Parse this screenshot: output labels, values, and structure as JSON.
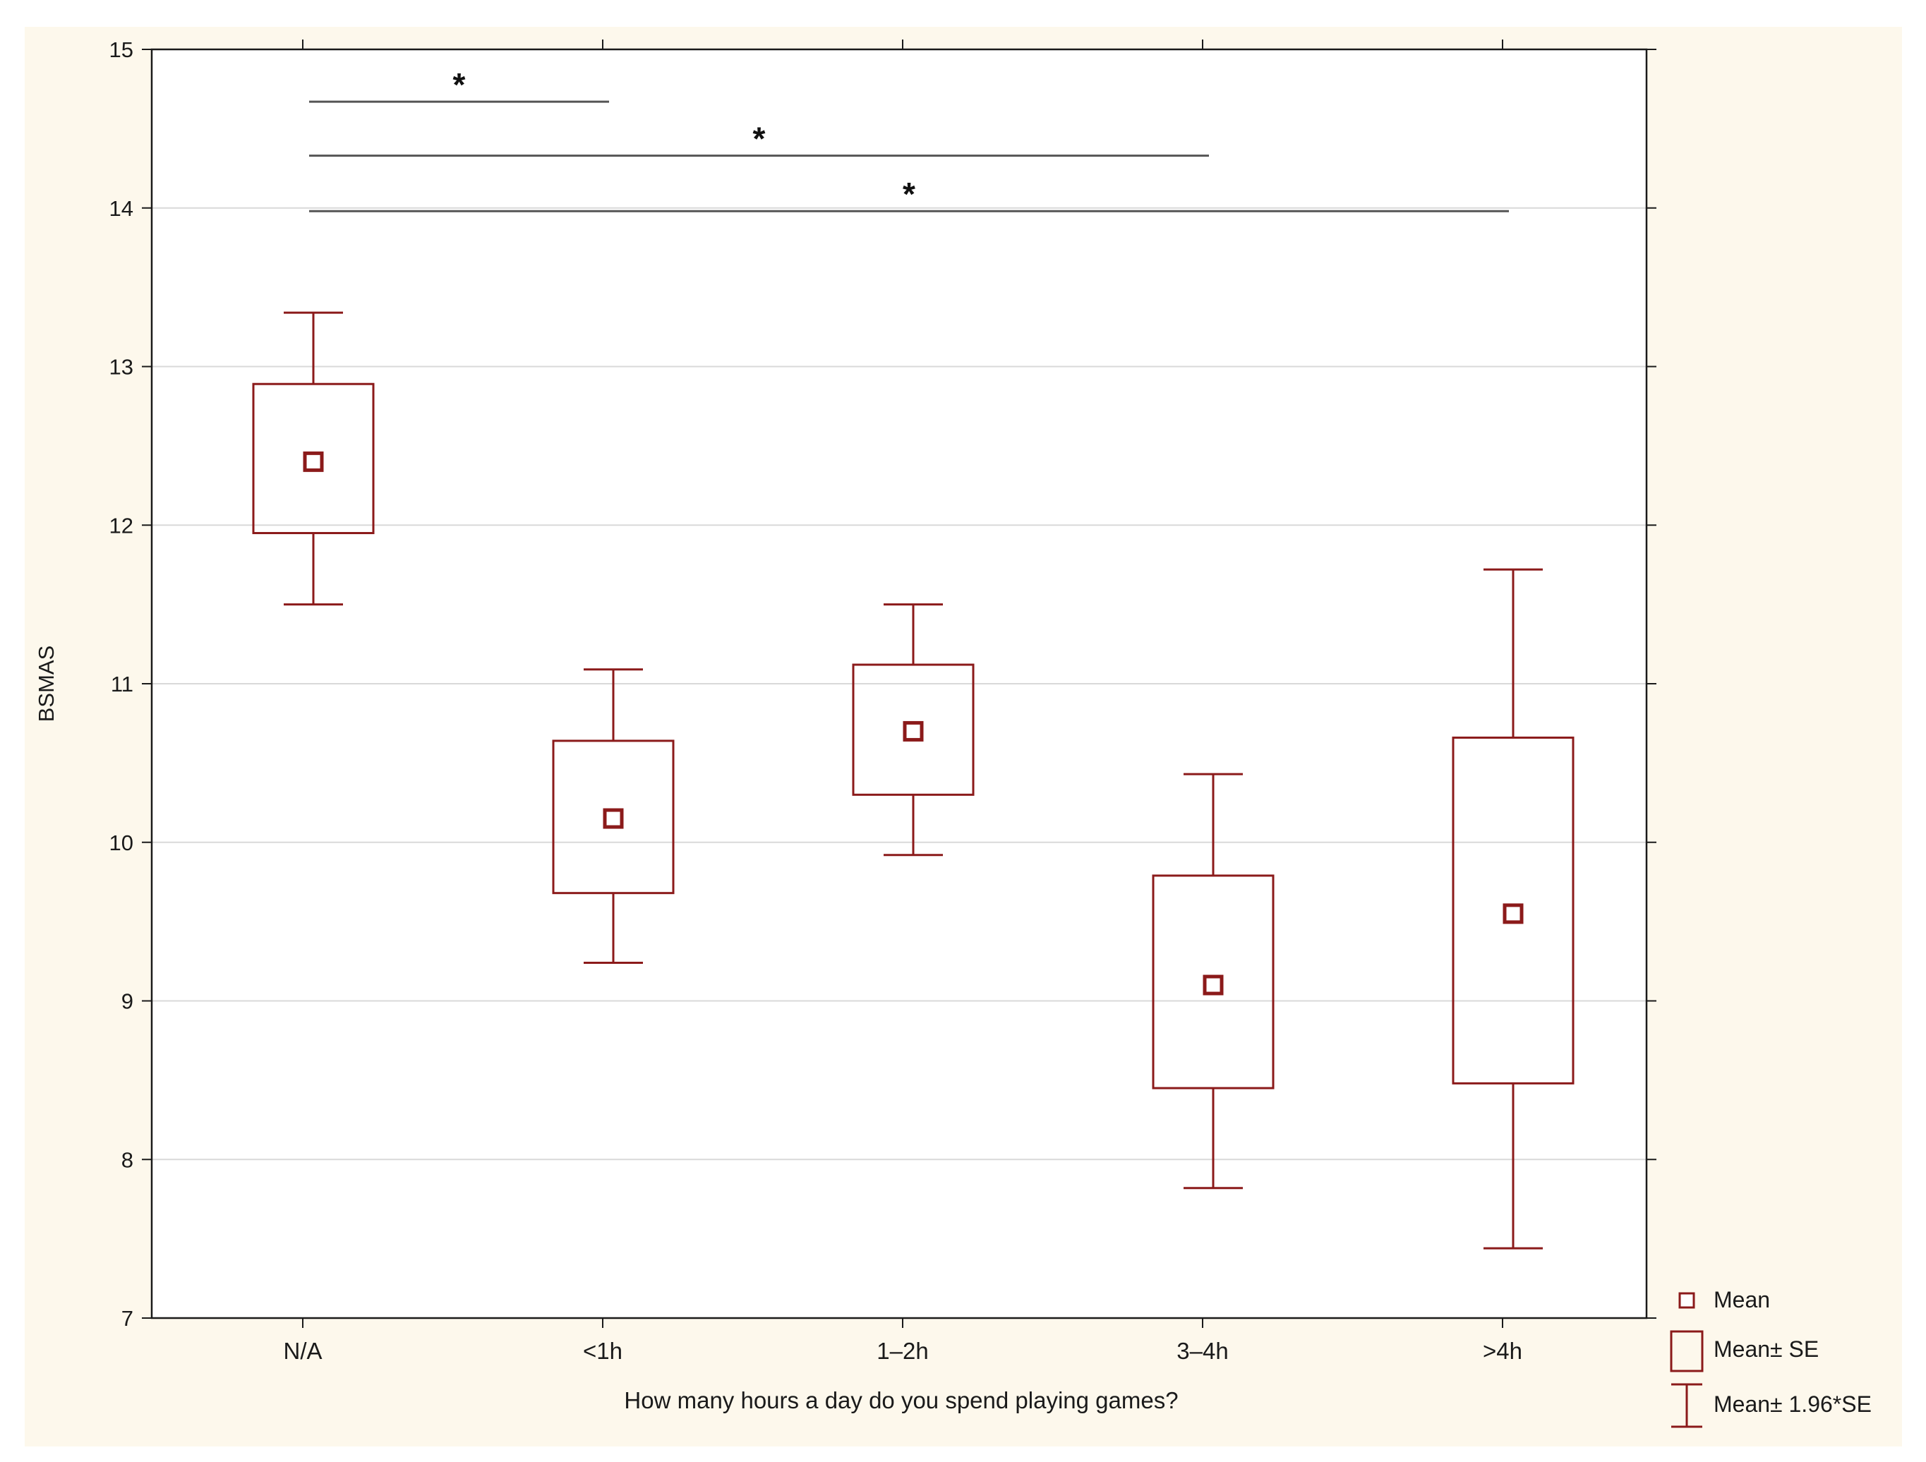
{
  "chart_data": {
    "type": "box",
    "title": "",
    "xlabel": "How many hours a day do you spend playing games?",
    "ylabel": "BSMAS",
    "ylim": [
      7,
      15
    ],
    "yticks": [
      7,
      8,
      9,
      10,
      11,
      12,
      13,
      14,
      15
    ],
    "grid": "horizontal",
    "categories": [
      "N/A",
      "<1h",
      "1–2h",
      "3–4h",
      ">4h"
    ],
    "mean": [
      12.4,
      10.15,
      10.7,
      9.1,
      9.55
    ],
    "mean_minus_se": [
      11.95,
      9.68,
      10.3,
      8.45,
      8.48
    ],
    "mean_plus_se": [
      12.89,
      10.64,
      11.12,
      9.79,
      10.66
    ],
    "mean_minus_1_96se": [
      11.5,
      9.24,
      9.92,
      7.82,
      7.44
    ],
    "mean_plus_1_96se": [
      13.34,
      11.09,
      11.5,
      10.43,
      11.72
    ],
    "significance": [
      {
        "from": "N/A",
        "to": "<1h",
        "y": 14.67,
        "label": "*"
      },
      {
        "from": "N/A",
        "to": "3–4h",
        "y": 14.33,
        "label": "*"
      },
      {
        "from": "N/A",
        "to": ">4h",
        "y": 13.98,
        "label": "*"
      }
    ],
    "legend": {
      "position": "bottom-right",
      "entries": [
        {
          "symbol": "mean",
          "label": "Mean"
        },
        {
          "symbol": "box",
          "label": "Mean± SE"
        },
        {
          "symbol": "whisker",
          "label": "Mean± 1.96*SE"
        }
      ]
    },
    "colors": {
      "marks": "#8b1a1a",
      "background": "#fdf8ec",
      "plot_bg": "#ffffff",
      "grid": "#d9d9d9",
      "axis": "#1a1a1a",
      "sig_line": "#555555"
    }
  }
}
